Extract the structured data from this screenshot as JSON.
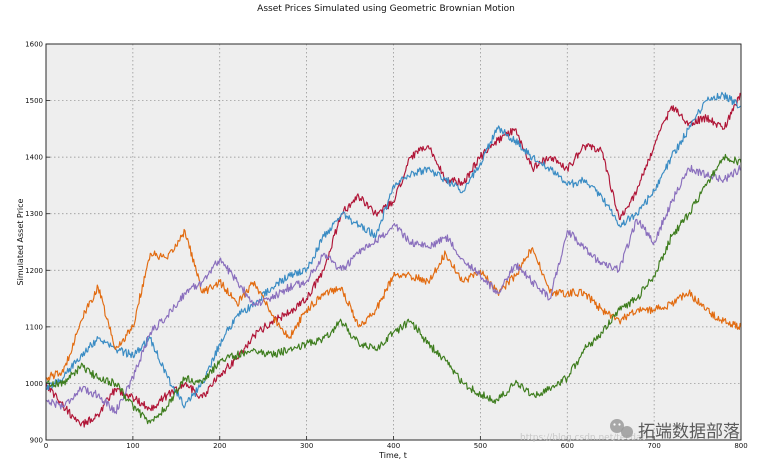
{
  "chart_data": {
    "type": "line",
    "title": "Asset Prices Simulated using Geometric Brownian Motion",
    "xlabel": "Time, t",
    "ylabel": "Simulated Asset Price",
    "xlim": [
      0,
      800
    ],
    "ylim": [
      900,
      1600
    ],
    "xticks": [
      "0",
      "100",
      "200",
      "300",
      "400",
      "500",
      "600",
      "700",
      "800"
    ],
    "yticks": [
      "900",
      "1000",
      "1100",
      "1200",
      "1300",
      "1400",
      "1500",
      "1600"
    ],
    "grid": true,
    "legend": "none",
    "series": [
      {
        "color": "#b01537",
        "x": [
          0,
          20,
          40,
          60,
          80,
          100,
          120,
          140,
          160,
          180,
          200,
          220,
          240,
          260,
          280,
          300,
          320,
          340,
          360,
          380,
          400,
          420,
          440,
          460,
          480,
          500,
          520,
          540,
          560,
          580,
          600,
          620,
          640,
          660,
          680,
          700,
          720,
          740,
          760,
          780,
          800
        ],
        "y": [
          1000,
          960,
          925,
          945,
          990,
          975,
          955,
          980,
          1000,
          975,
          1015,
          1045,
          1085,
          1110,
          1125,
          1150,
          1200,
          1300,
          1330,
          1300,
          1320,
          1400,
          1420,
          1360,
          1355,
          1400,
          1430,
          1450,
          1380,
          1400,
          1380,
          1420,
          1410,
          1290,
          1340,
          1420,
          1490,
          1460,
          1470,
          1450,
          1510
        ]
      },
      {
        "color": "#3a8cc4",
        "x": [
          0,
          20,
          40,
          60,
          80,
          100,
          120,
          140,
          160,
          180,
          200,
          220,
          240,
          260,
          280,
          300,
          320,
          340,
          360,
          380,
          400,
          420,
          440,
          460,
          480,
          500,
          520,
          540,
          560,
          580,
          600,
          620,
          640,
          660,
          680,
          700,
          720,
          740,
          760,
          780,
          800
        ],
        "y": [
          990,
          1010,
          1050,
          1080,
          1060,
          1050,
          1080,
          1010,
          960,
          1000,
          1070,
          1120,
          1140,
          1170,
          1190,
          1200,
          1260,
          1300,
          1280,
          1260,
          1350,
          1370,
          1380,
          1360,
          1340,
          1390,
          1450,
          1430,
          1400,
          1380,
          1350,
          1360,
          1330,
          1280,
          1300,
          1340,
          1400,
          1450,
          1500,
          1510,
          1490
        ]
      },
      {
        "color": "#e26b10",
        "x": [
          0,
          20,
          40,
          60,
          80,
          100,
          120,
          140,
          160,
          180,
          200,
          220,
          240,
          260,
          280,
          300,
          320,
          340,
          360,
          380,
          400,
          420,
          440,
          460,
          480,
          500,
          520,
          540,
          560,
          580,
          600,
          620,
          640,
          660,
          680,
          700,
          720,
          740,
          760,
          780,
          800
        ],
        "y": [
          1010,
          1020,
          1110,
          1170,
          1060,
          1100,
          1230,
          1220,
          1270,
          1160,
          1180,
          1140,
          1180,
          1120,
          1080,
          1130,
          1160,
          1170,
          1100,
          1130,
          1190,
          1190,
          1180,
          1230,
          1180,
          1200,
          1160,
          1190,
          1240,
          1160,
          1160,
          1160,
          1130,
          1110,
          1130,
          1130,
          1140,
          1160,
          1130,
          1110,
          1100
        ]
      },
      {
        "color": "#8a6fbd",
        "x": [
          0,
          20,
          40,
          60,
          80,
          100,
          120,
          140,
          160,
          180,
          200,
          220,
          240,
          260,
          280,
          300,
          320,
          340,
          360,
          380,
          400,
          420,
          440,
          460,
          480,
          500,
          520,
          540,
          560,
          580,
          600,
          620,
          640,
          660,
          680,
          700,
          720,
          740,
          760,
          780,
          800
        ],
        "y": [
          970,
          960,
          990,
          980,
          950,
          1010,
          1090,
          1120,
          1160,
          1180,
          1220,
          1180,
          1140,
          1150,
          1170,
          1180,
          1230,
          1200,
          1230,
          1250,
          1280,
          1250,
          1240,
          1260,
          1220,
          1190,
          1160,
          1210,
          1180,
          1150,
          1270,
          1240,
          1210,
          1200,
          1290,
          1250,
          1320,
          1380,
          1370,
          1360,
          1380
        ]
      },
      {
        "color": "#3e7d1e",
        "x": [
          0,
          20,
          40,
          60,
          80,
          100,
          120,
          140,
          160,
          180,
          200,
          220,
          240,
          260,
          280,
          300,
          320,
          340,
          360,
          380,
          400,
          420,
          440,
          460,
          480,
          500,
          520,
          540,
          560,
          580,
          600,
          620,
          640,
          660,
          680,
          700,
          720,
          740,
          760,
          780,
          800
        ],
        "y": [
          1000,
          1000,
          1030,
          1010,
          1000,
          960,
          930,
          960,
          1010,
          1000,
          1040,
          1050,
          1060,
          1050,
          1060,
          1070,
          1080,
          1110,
          1070,
          1060,
          1090,
          1110,
          1070,
          1040,
          1000,
          980,
          970,
          1000,
          980,
          990,
          1010,
          1060,
          1090,
          1130,
          1150,
          1190,
          1260,
          1300,
          1350,
          1400,
          1390
        ]
      }
    ]
  },
  "watermark": {
    "url_text": "https://blog.csdn.net/tecdat",
    "brand_text": "拓端数据部落"
  }
}
